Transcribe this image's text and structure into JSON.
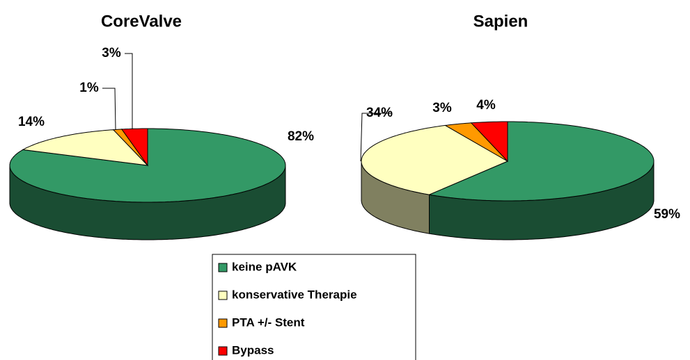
{
  "chart_data": [
    {
      "type": "pie",
      "title": "CoreValve",
      "categories": [
        "keine pAVK",
        "konservative Therapie",
        "PTA +/- Stent",
        "Bypass"
      ],
      "values": [
        82,
        14,
        1,
        3
      ],
      "value_labels": [
        "82%",
        "14%",
        "1%",
        "3%"
      ],
      "colors": [
        "#339966",
        "#ffffc0",
        "#ff9900",
        "#ff0000"
      ]
    },
    {
      "type": "pie",
      "title": "Sapien",
      "categories": [
        "keine pAVK",
        "konservative Therapie",
        "PTA +/- Stent",
        "Bypass"
      ],
      "values": [
        59,
        34,
        3,
        4
      ],
      "value_labels": [
        "59%",
        "34%",
        "3%",
        "4%"
      ],
      "colors": [
        "#339966",
        "#ffffc0",
        "#ff9900",
        "#ff0000"
      ]
    }
  ]
}
